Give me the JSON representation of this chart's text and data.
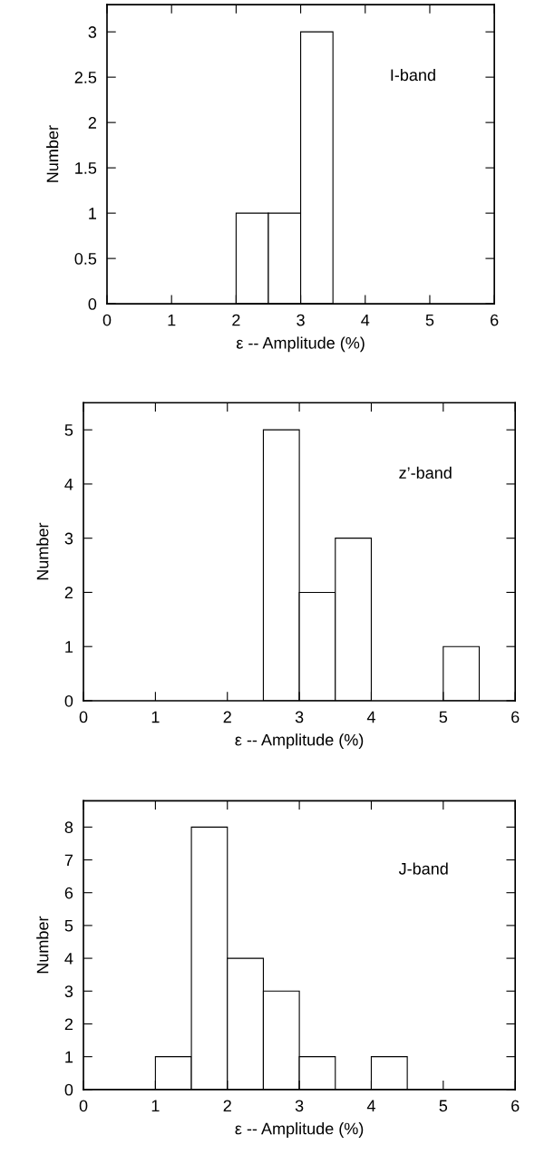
{
  "chart_data": [
    {
      "type": "histogram",
      "xlabel": "ε -- Amplitude (%)",
      "ylabel": "Number",
      "annotations": [
        "I-band"
      ],
      "bins": [
        0,
        0.5,
        1,
        1.5,
        2,
        2.5,
        3,
        3.5,
        4,
        4.5,
        5,
        5.5,
        6
      ],
      "values": [
        0,
        0,
        0,
        0,
        1,
        1,
        3,
        0,
        0,
        0,
        0,
        0
      ],
      "color": "#ffffff",
      "xlim": [
        0,
        6
      ],
      "xticks": [
        0,
        1,
        2,
        3,
        4,
        5,
        6
      ],
      "ylim": [
        0,
        3.3
      ],
      "yticks": [
        0,
        0.5,
        1,
        1.5,
        2,
        2.5,
        3
      ],
      "grid": false,
      "legend": false
    },
    {
      "type": "histogram",
      "xlabel": "ε -- Amplitude (%)",
      "ylabel": "Number",
      "annotations": [
        "z’-band"
      ],
      "bins": [
        0,
        0.5,
        1,
        1.5,
        2,
        2.5,
        3,
        3.5,
        4,
        4.5,
        5,
        5.5,
        6
      ],
      "values": [
        0,
        0,
        0,
        0,
        0,
        5,
        2,
        3,
        0,
        0,
        1,
        0
      ],
      "color": "#ffffff",
      "xlim": [
        0,
        6
      ],
      "xticks": [
        0,
        1,
        2,
        3,
        4,
        5,
        6
      ],
      "ylim": [
        0,
        5.5
      ],
      "yticks": [
        0,
        1,
        2,
        3,
        4,
        5
      ],
      "grid": false,
      "legend": false
    },
    {
      "type": "histogram",
      "xlabel": "ε -- Amplitude (%)",
      "ylabel": "Number",
      "annotations": [
        "J-band"
      ],
      "bins": [
        0,
        0.5,
        1,
        1.5,
        2,
        2.5,
        3,
        3.5,
        4,
        4.5,
        5,
        5.5,
        6
      ],
      "values": [
        0,
        0,
        1,
        8,
        4,
        3,
        1,
        0,
        1,
        0,
        0,
        0
      ],
      "color": "#ffffff",
      "xlim": [
        0,
        6
      ],
      "xticks": [
        0,
        1,
        2,
        3,
        4,
        5,
        6
      ],
      "ylim": [
        0,
        8.8
      ],
      "yticks": [
        0,
        1,
        2,
        3,
        4,
        5,
        6,
        7,
        8
      ],
      "grid": false,
      "legend": false
    }
  ]
}
